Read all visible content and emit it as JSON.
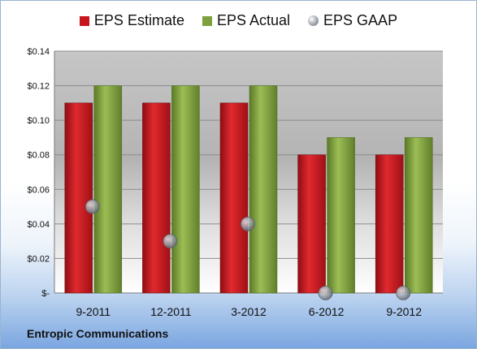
{
  "chart_data": {
    "type": "bar",
    "categories": [
      "9-2011",
      "12-2011",
      "3-2012",
      "6-2012",
      "9-2012"
    ],
    "series": [
      {
        "name": "EPS Estimate",
        "kind": "bar",
        "color": "#c8161d",
        "values": [
          0.11,
          0.11,
          0.11,
          0.08,
          0.08
        ]
      },
      {
        "name": "EPS Actual",
        "kind": "bar",
        "color": "#7ea03e",
        "values": [
          0.12,
          0.12,
          0.12,
          0.09,
          0.09
        ]
      },
      {
        "name": "EPS GAAP",
        "kind": "marker",
        "color": "#9aa0a8",
        "values": [
          0.05,
          0.03,
          0.04,
          0.0,
          0.0
        ]
      }
    ],
    "y_ticks": [
      "$-",
      "$0.02",
      "$0.04",
      "$0.06",
      "$0.08",
      "$0.10",
      "$0.12",
      "$0.14"
    ],
    "ylim": [
      0,
      0.14
    ],
    "grid": true,
    "legend_position": "top"
  },
  "footer": {
    "company": "Entropic Communications"
  }
}
